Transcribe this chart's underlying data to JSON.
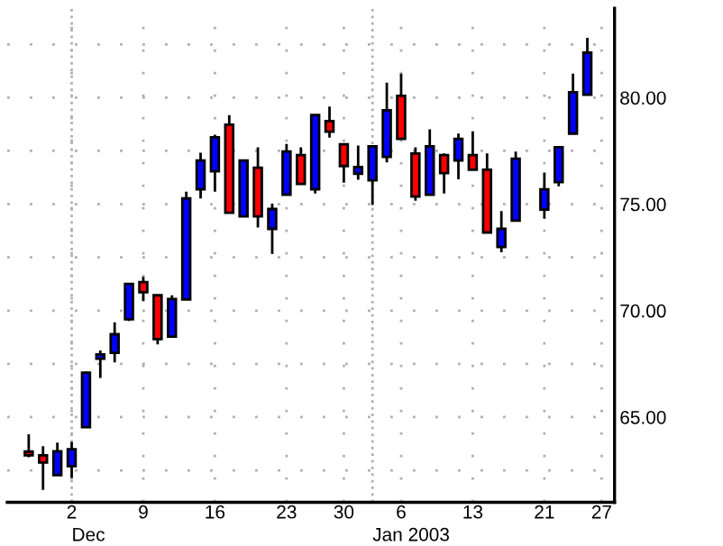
{
  "chart_data": {
    "type": "candlestick",
    "categories": [
      null,
      null,
      null,
      "2",
      null,
      null,
      null,
      null,
      "9",
      null,
      null,
      null,
      null,
      "16",
      null,
      null,
      null,
      null,
      "23",
      null,
      null,
      null,
      "30",
      null,
      null,
      null,
      "6",
      null,
      null,
      null,
      null,
      "13",
      null,
      null,
      null,
      null,
      "21",
      null,
      null,
      null,
      "27"
    ],
    "annotations": [
      "Dec",
      "Jan 2003"
    ],
    "ohlc": [
      [
        63.38,
        64.19,
        63.12,
        63.21
      ],
      [
        63.21,
        63.63,
        61.58,
        62.87
      ],
      [
        62.28,
        63.8,
        62.28,
        63.4
      ],
      [
        62.7,
        63.83,
        62.14,
        63.49
      ],
      [
        64.53,
        67.14,
        64.53,
        67.09
      ],
      [
        67.74,
        68.13,
        66.84,
        67.94
      ],
      [
        68.02,
        69.45,
        67.57,
        68.89
      ],
      [
        69.59,
        71.25,
        69.51,
        71.25
      ],
      [
        71.34,
        71.59,
        70.44,
        70.86
      ],
      [
        70.72,
        70.72,
        68.41,
        68.66
      ],
      [
        68.78,
        70.72,
        68.78,
        70.55
      ],
      [
        70.52,
        75.58,
        70.52,
        75.27
      ],
      [
        75.7,
        77.41,
        75.27,
        77.05
      ],
      [
        76.54,
        78.26,
        75.58,
        78.14
      ],
      [
        78.73,
        79.18,
        74.6,
        74.6
      ],
      [
        74.43,
        77.05,
        74.43,
        77.05
      ],
      [
        76.71,
        77.67,
        73.9,
        74.43
      ],
      [
        73.84,
        75.02,
        72.66,
        74.77
      ],
      [
        75.44,
        77.83,
        75.44,
        77.47
      ],
      [
        77.3,
        77.67,
        75.95,
        75.95
      ],
      [
        75.7,
        79.18,
        75.5,
        79.18
      ],
      [
        78.9,
        79.58,
        78.12,
        78.4
      ],
      [
        77.81,
        77.81,
        76.01,
        76.79
      ],
      [
        76.43,
        77.75,
        76.15,
        76.74
      ],
      [
        76.12,
        77.72,
        74.96,
        77.72
      ],
      [
        77.22,
        80.7,
        76.96,
        79.41
      ],
      [
        80.08,
        81.13,
        78.06,
        78.06
      ],
      [
        77.38,
        77.67,
        75.16,
        75.36
      ],
      [
        75.44,
        78.51,
        75.44,
        77.72
      ],
      [
        77.3,
        77.38,
        75.5,
        76.46
      ],
      [
        77.05,
        78.31,
        76.17,
        78.06
      ],
      [
        77.3,
        78.42,
        76.62,
        76.62
      ],
      [
        76.62,
        77.38,
        73.67,
        73.67
      ],
      [
        72.99,
        74.68,
        72.74,
        73.84
      ],
      [
        74.23,
        77.47,
        74.18,
        77.13
      ],
      null,
      [
        74.74,
        76.48,
        74.32,
        75.7
      ],
      [
        76.03,
        77.72,
        75.84,
        77.67
      ],
      [
        78.31,
        81.13,
        78.31,
        80.25
      ],
      [
        80.14,
        82.81,
        80.14,
        82.11
      ],
      null
    ],
    "colors": [
      "#ff0000",
      "#ff0000",
      "#0000ff",
      "#0000ff",
      "#0000ff",
      "#0000ff",
      "#0000ff",
      "#0000ff",
      "#ff0000",
      "#ff0000",
      "#0000ff",
      "#0000ff",
      "#0000ff",
      "#0000ff",
      "#ff0000",
      "#0000ff",
      "#ff0000",
      "#0000ff",
      "#0000ff",
      "#ff0000",
      "#0000ff",
      "#ff0000",
      "#ff0000",
      "#0000ff",
      "#0000ff",
      "#0000ff",
      "#ff0000",
      "#ff0000",
      "#0000ff",
      "#ff0000",
      "#0000ff",
      "#ff0000",
      "#ff0000",
      "#0000ff",
      "#0000ff",
      null,
      "#0000ff",
      "#0000ff",
      "#0000ff",
      "#0000ff",
      null
    ],
    "ylim": [
      61,
      84.2
    ],
    "yticks": [
      {
        "value": 62.5,
        "label": null
      },
      {
        "value": 65,
        "label": "65.00"
      },
      {
        "value": 67.5,
        "label": null
      },
      {
        "value": 70,
        "label": "70.00"
      },
      {
        "value": 72.5,
        "label": null
      },
      {
        "value": 75,
        "label": "75.00"
      },
      {
        "value": 77.5,
        "label": null
      },
      {
        "value": 80,
        "label": "80.00"
      },
      {
        "value": 82.5,
        "label": null
      }
    ],
    "grid": true
  }
}
